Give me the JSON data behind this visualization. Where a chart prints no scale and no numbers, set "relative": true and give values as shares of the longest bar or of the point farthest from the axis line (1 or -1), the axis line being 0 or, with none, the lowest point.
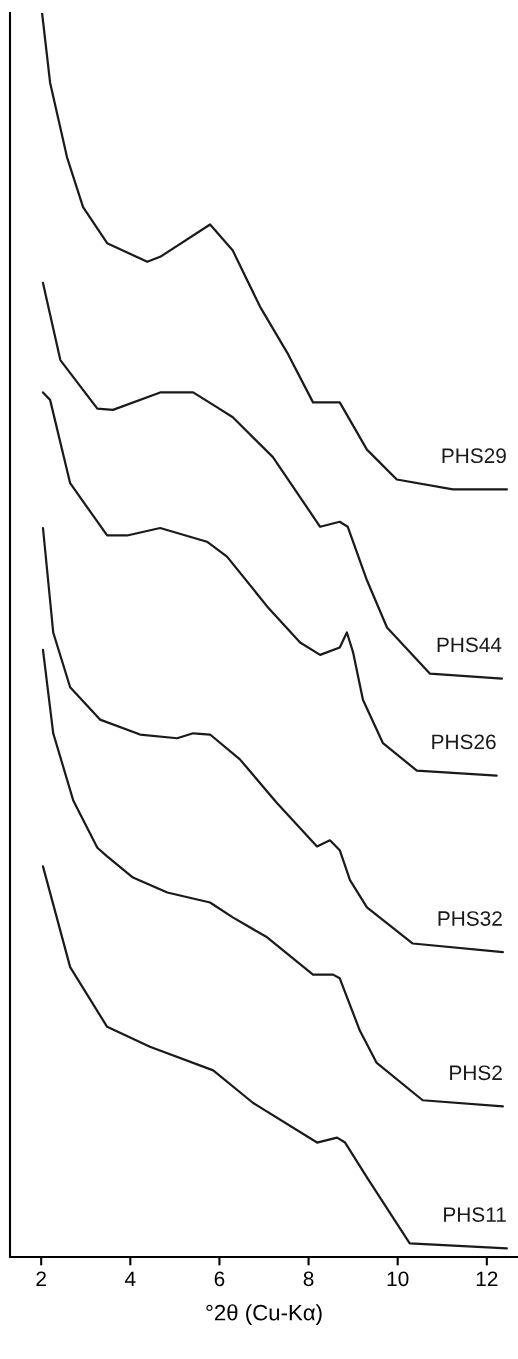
{
  "chart_data": {
    "type": "line",
    "relative": true,
    "xlabel": "°2θ (Cu-Kα)",
    "xlim": [
      1.3,
      12.7
    ],
    "xticks": [
      2,
      4,
      6,
      8,
      10,
      12
    ],
    "series": [
      {
        "name": "PHS29",
        "color": "#1a1a1a",
        "x": [
          2.02,
          2.2,
          2.58,
          2.94,
          3.48,
          4.38,
          4.67,
          5.79,
          6.3,
          6.91,
          7.52,
          8.1,
          8.7,
          9.31,
          9.98,
          11.24,
          12.45
        ],
        "values": [
          1.0,
          0.944,
          0.884,
          0.844,
          0.815,
          0.8,
          0.804,
          0.83,
          0.809,
          0.764,
          0.727,
          0.687,
          0.687,
          0.649,
          0.625,
          0.617,
          0.617
        ]
      },
      {
        "name": "PHS44",
        "color": "#1a1a1a",
        "x": [
          2.04,
          2.43,
          3.26,
          3.61,
          4.67,
          5.41,
          5.95,
          6.3,
          7.2,
          8.26,
          8.7,
          8.88,
          9.31,
          9.76,
          10.72,
          12.34
        ],
        "values": [
          0.783,
          0.721,
          0.682,
          0.681,
          0.695,
          0.695,
          0.683,
          0.675,
          0.643,
          0.587,
          0.591,
          0.587,
          0.544,
          0.506,
          0.469,
          0.465
        ]
      },
      {
        "name": "PHS26",
        "color": "#1a1a1a",
        "x": [
          2.04,
          2.2,
          2.65,
          3.48,
          3.93,
          4.67,
          5.72,
          6.17,
          7.07,
          7.81,
          8.26,
          8.7,
          8.86,
          9.0,
          9.22,
          9.67,
          10.43,
          12.22
        ],
        "values": [
          0.695,
          0.689,
          0.622,
          0.58,
          0.58,
          0.586,
          0.575,
          0.563,
          0.523,
          0.494,
          0.484,
          0.49,
          0.502,
          0.486,
          0.448,
          0.413,
          0.391,
          0.387
        ]
      },
      {
        "name": "PHS32",
        "color": "#1a1a1a",
        "x": [
          2.04,
          2.27,
          2.65,
          3.32,
          4.22,
          5.05,
          5.41,
          5.79,
          6.46,
          7.29,
          8.19,
          8.48,
          8.7,
          8.93,
          9.31,
          10.34,
          12.36
        ],
        "values": [
          0.586,
          0.502,
          0.458,
          0.432,
          0.42,
          0.417,
          0.421,
          0.42,
          0.4,
          0.365,
          0.33,
          0.335,
          0.327,
          0.303,
          0.281,
          0.252,
          0.245
        ]
      },
      {
        "name": "PHS2",
        "color": "#1a1a1a",
        "x": [
          2.04,
          2.27,
          2.72,
          3.26,
          3.48,
          4.06,
          4.83,
          5.79,
          6.3,
          7.07,
          8.1,
          8.55,
          8.7,
          9.15,
          9.53,
          10.56,
          12.36
        ],
        "values": [
          0.488,
          0.421,
          0.367,
          0.329,
          0.322,
          0.305,
          0.293,
          0.285,
          0.273,
          0.257,
          0.227,
          0.227,
          0.224,
          0.182,
          0.156,
          0.126,
          0.121
        ]
      },
      {
        "name": "PHS11",
        "color": "#1a1a1a",
        "x": [
          2.04,
          2.65,
          3.48,
          4.44,
          5.86,
          6.75,
          8.19,
          8.64,
          8.82,
          9.31,
          10.27,
          12.45
        ],
        "values": [
          0.314,
          0.233,
          0.185,
          0.169,
          0.15,
          0.124,
          0.092,
          0.096,
          0.092,
          0.064,
          0.011,
          0.007
        ]
      }
    ]
  }
}
